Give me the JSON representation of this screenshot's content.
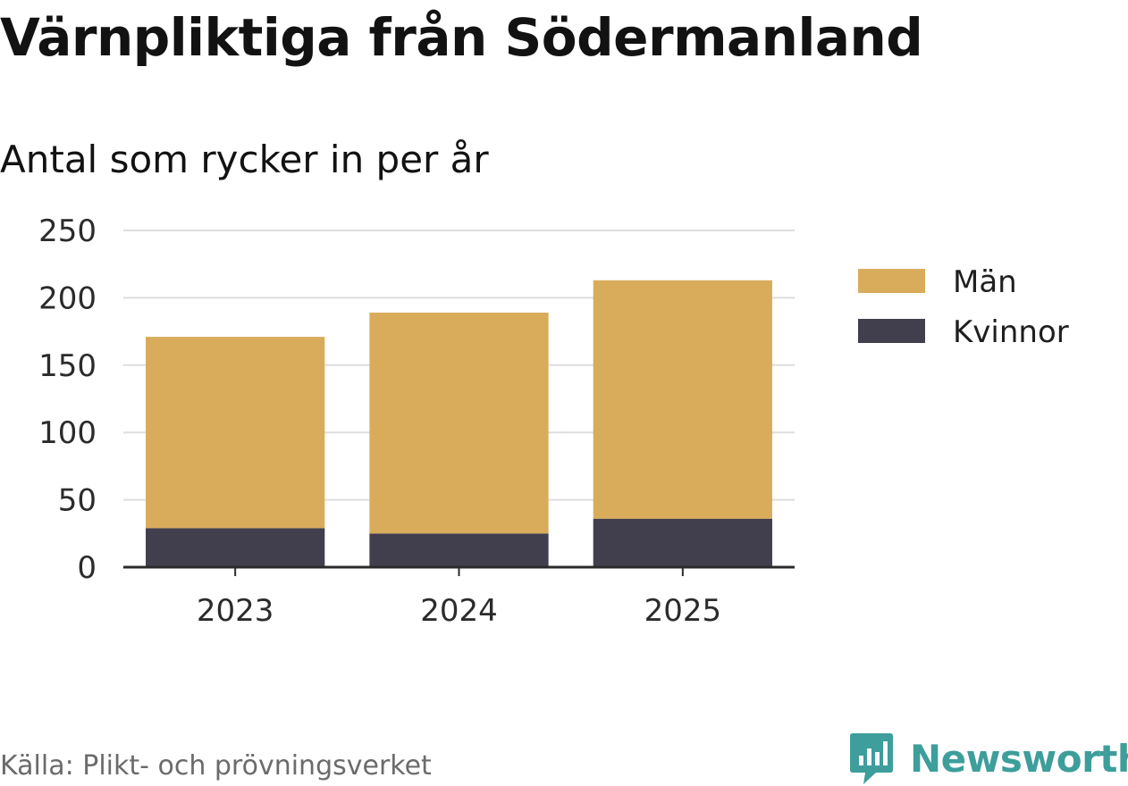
{
  "title": "Värnpliktiga från Södermanland",
  "subtitle": "Antal som rycker in per år",
  "source": "Källa: Plikt- och prövningsverket",
  "brand": {
    "name": "Newsworthy",
    "icon": "bar-chart-speech-bubble-icon",
    "color": "#3d9e9b"
  },
  "chart_data": {
    "type": "bar",
    "stacked": true,
    "categories": [
      "2023",
      "2024",
      "2025"
    ],
    "series": [
      {
        "name": "Kvinnor",
        "values": [
          29,
          25,
          36
        ],
        "color": "#413f4e"
      },
      {
        "name": "Män",
        "values": [
          142,
          164,
          177
        ],
        "color": "#d9ac5c"
      }
    ],
    "legend": [
      "Män",
      "Kvinnor"
    ],
    "legend_position": "right",
    "ylim": [
      0,
      250
    ],
    "yticks": [
      "0",
      "50",
      "100",
      "150",
      "200",
      "250"
    ],
    "grid": true,
    "xlabel": "",
    "ylabel": ""
  }
}
